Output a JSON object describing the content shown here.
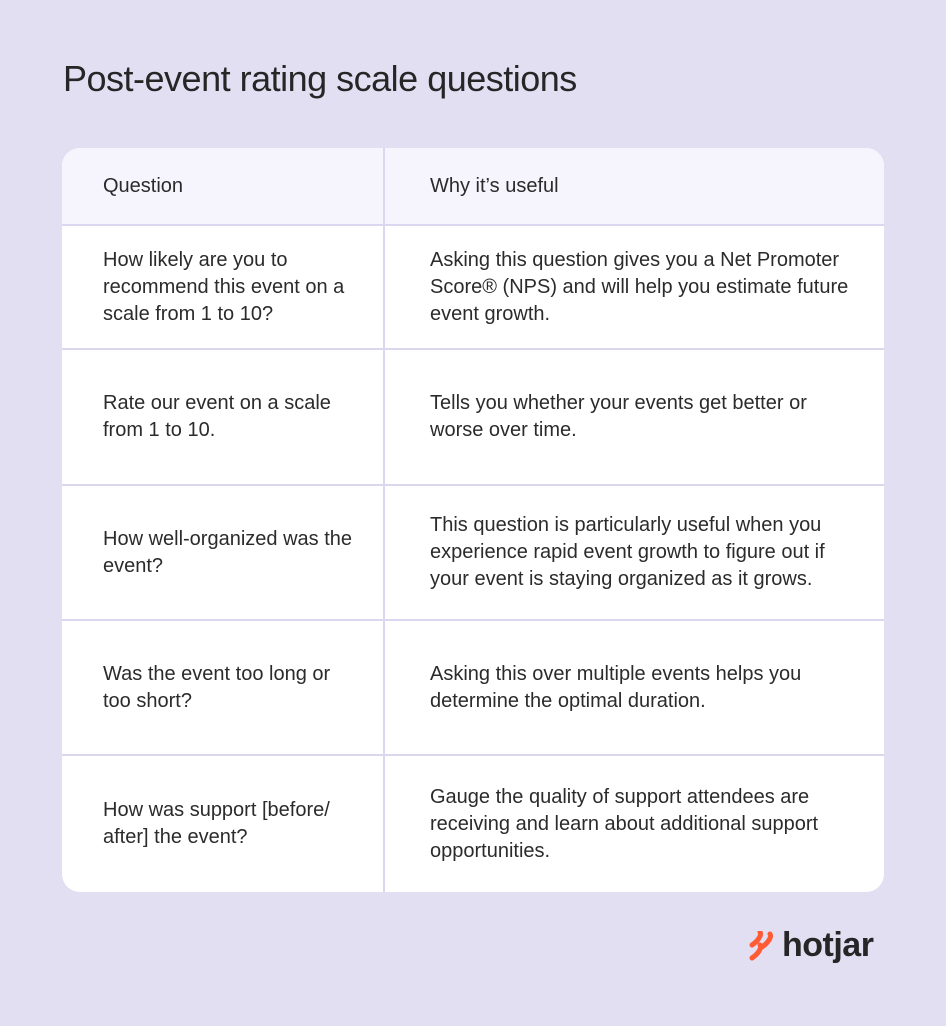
{
  "header": {
    "title": "Post-event rating scale questions"
  },
  "table": {
    "columns": [
      "Question",
      "Why it’s useful"
    ],
    "rows": [
      [
        "How likely are you to recommend this event on a scale from 1 to 10?",
        "Asking this question gives you a Net Promoter Score® (NPS) and will help you estimate future event growth."
      ],
      [
        "Rate our event on a scale from 1 to 10.",
        "Tells you whether your events get better or worse over time."
      ],
      [
        "How well-organized was the event?",
        "This question is particularly useful when you experience rapid event growth to figure out if your event is staying organized as it grows."
      ],
      [
        "Was the event too long or too short?",
        "Asking this over multiple events helps you determine the optimal duration."
      ],
      [
        "How was support [before/ after] the event?",
        "Gauge the quality of support attendees are receiving and learn about additional support opportunities."
      ]
    ]
  },
  "footer": {
    "logo": "hotjar"
  }
}
